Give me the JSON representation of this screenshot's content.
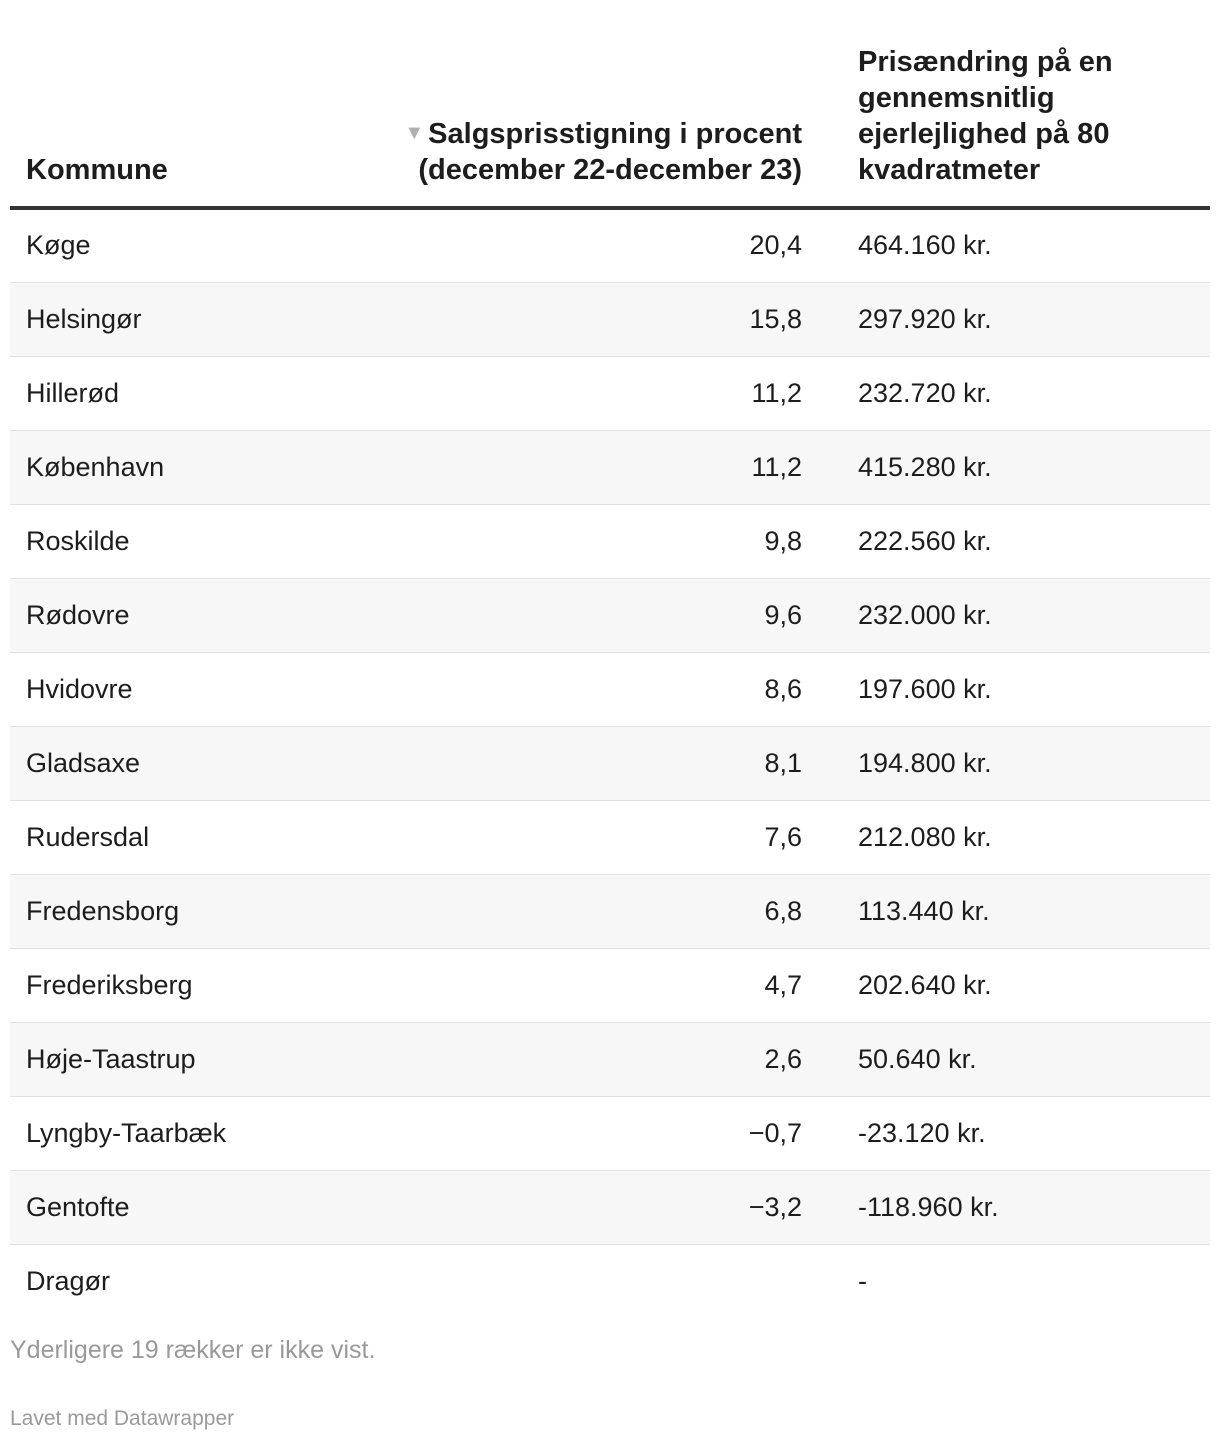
{
  "chart_data": {
    "type": "table",
    "columns": [
      "Kommune",
      "Salgsprisstigning i procent (december 22-december 23)",
      "Prisændring på en gennemsnitlig ejerlejlighed på 80 kvadratmeter"
    ],
    "header": {
      "kommune": "Kommune",
      "pct": "Salgsprisstigning i procent (december 22-december 23)",
      "change": "Prisændring på en gennemsnitlig ejerlejlighed på 80 kvadratmeter",
      "sort_icon": "sort-descending-icon"
    },
    "sorted_by": "Salgsprisstigning i procent (december 22-december 23)",
    "sort_order": "descending",
    "rows": [
      {
        "kommune": "Køge",
        "pct": "20,4",
        "change": "464.160 kr."
      },
      {
        "kommune": "Helsingør",
        "pct": "15,8",
        "change": "297.920 kr."
      },
      {
        "kommune": "Hillerød",
        "pct": "11,2",
        "change": "232.720 kr."
      },
      {
        "kommune": "København",
        "pct": "11,2",
        "change": "415.280 kr."
      },
      {
        "kommune": "Roskilde",
        "pct": "9,8",
        "change": "222.560 kr."
      },
      {
        "kommune": "Rødovre",
        "pct": "9,6",
        "change": "232.000 kr."
      },
      {
        "kommune": "Hvidovre",
        "pct": "8,6",
        "change": "197.600 kr."
      },
      {
        "kommune": "Gladsaxe",
        "pct": "8,1",
        "change": "194.800 kr."
      },
      {
        "kommune": "Rudersdal",
        "pct": "7,6",
        "change": "212.080 kr."
      },
      {
        "kommune": "Fredensborg",
        "pct": "6,8",
        "change": "113.440 kr."
      },
      {
        "kommune": "Frederiksberg",
        "pct": "4,7",
        "change": "202.640 kr."
      },
      {
        "kommune": "Høje-Taastrup",
        "pct": "2,6",
        "change": "50.640 kr."
      },
      {
        "kommune": "Lyngby-Taarbæk",
        "pct": "−0,7",
        "change": "-23.120 kr."
      },
      {
        "kommune": "Gentofte",
        "pct": "−3,2",
        "change": "-118.960 kr."
      },
      {
        "kommune": "Dragør",
        "pct": "",
        "change": "-"
      }
    ]
  },
  "footer": {
    "more_rows": "Yderligere 19 rækker er ikke vist.",
    "credit": "Lavet med Datawrapper"
  }
}
